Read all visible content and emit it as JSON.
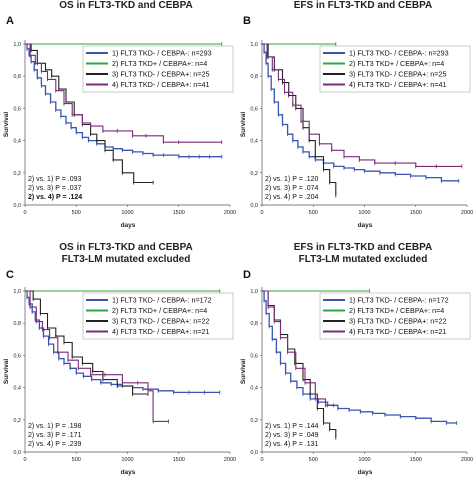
{
  "chart_data": [
    {
      "type": "line",
      "letter": "A",
      "title": "OS in FLT3-TKD and CEBPA",
      "subtitle": "",
      "xlabel": "days",
      "ylabel": "Survival",
      "xlim": [
        0,
        2000
      ],
      "ylim": [
        0,
        1.0
      ],
      "xticks": [
        "0",
        "500",
        "1000",
        "1500",
        "2000"
      ],
      "yticks": [
        "0,0",
        "0,2",
        "0,4",
        "0,6",
        "0,8",
        "1,0"
      ],
      "series": [
        {
          "name": "1) FLT3 TKD- / CEBPA-: n=293",
          "color": "#3a55b0",
          "x": [
            0,
            20,
            40,
            60,
            90,
            120,
            160,
            200,
            250,
            300,
            350,
            400,
            450,
            500,
            560,
            620,
            700,
            780,
            860,
            950,
            1050,
            1150,
            1250,
            1350,
            1500,
            1600,
            1700,
            1800,
            1920
          ],
          "y": [
            1.0,
            0.97,
            0.93,
            0.89,
            0.84,
            0.79,
            0.74,
            0.69,
            0.64,
            0.59,
            0.55,
            0.51,
            0.48,
            0.45,
            0.42,
            0.4,
            0.38,
            0.36,
            0.35,
            0.34,
            0.33,
            0.32,
            0.31,
            0.31,
            0.3,
            0.3,
            0.3,
            0.3,
            0.3
          ]
        },
        {
          "name": "2) FLT3 TKD+ / CEBPA+: n=4",
          "color": "#2ea640",
          "x": [
            0,
            1920
          ],
          "y": [
            1.0,
            1.0
          ]
        },
        {
          "name": "3) FLT3 TKD- / CEBPA+: n=25",
          "color": "#222222",
          "x": [
            0,
            60,
            120,
            200,
            260,
            330,
            400,
            480,
            560,
            640,
            700,
            780,
            860,
            950,
            1060,
            1250
          ],
          "y": [
            1.0,
            0.96,
            0.88,
            0.84,
            0.8,
            0.72,
            0.64,
            0.56,
            0.5,
            0.44,
            0.4,
            0.34,
            0.28,
            0.2,
            0.14,
            0.14
          ]
        },
        {
          "name": "4) FLT3 TKD- / CEBPA+: n=41",
          "color": "#7a2a7a",
          "x": [
            0,
            50,
            100,
            160,
            220,
            300,
            380,
            460,
            560,
            640,
            760,
            900,
            1050,
            1180,
            1350,
            1500,
            1920
          ],
          "y": [
            1.0,
            0.93,
            0.88,
            0.83,
            0.78,
            0.71,
            0.63,
            0.56,
            0.51,
            0.49,
            0.46,
            0.46,
            0.43,
            0.43,
            0.39,
            0.39,
            0.39
          ]
        }
      ],
      "pvalues": [
        "2) vs. 1) P = .093",
        "2) vs. 3) P = .037",
        "2) vs. 4) P = .124"
      ]
    },
    {
      "type": "line",
      "letter": "B",
      "title": "EFS in FLT3-TKD and CEBPA",
      "subtitle": "",
      "xlabel": "days",
      "ylabel": "Survival",
      "xlim": [
        0,
        2000
      ],
      "ylim": [
        0,
        1.0
      ],
      "xticks": [
        "0",
        "500",
        "1000",
        "1500",
        "2000"
      ],
      "yticks": [
        "0,0",
        "0,2",
        "0,4",
        "0,6",
        "0,8",
        "1,0"
      ],
      "series": [
        {
          "name": "1) FLT3 TKD- / CEBPA-: n=293",
          "color": "#3a55b0",
          "x": [
            0,
            20,
            40,
            60,
            90,
            120,
            160,
            200,
            250,
            300,
            350,
            400,
            460,
            520,
            600,
            700,
            800,
            900,
            1000,
            1150,
            1300,
            1450,
            1600,
            1750,
            1920
          ],
          "y": [
            1.0,
            0.95,
            0.88,
            0.8,
            0.72,
            0.64,
            0.56,
            0.5,
            0.44,
            0.4,
            0.36,
            0.33,
            0.3,
            0.28,
            0.26,
            0.24,
            0.23,
            0.22,
            0.21,
            0.2,
            0.19,
            0.18,
            0.17,
            0.15,
            0.15
          ]
        },
        {
          "name": "2) FLT3 TKD+ / CEBPA+: n=4",
          "color": "#2ea640",
          "x": [
            0,
            720
          ],
          "y": [
            1.0,
            1.0
          ]
        },
        {
          "name": "3) FLT3 TKD- / CEBPA+: n=25",
          "color": "#222222",
          "x": [
            0,
            60,
            120,
            200,
            260,
            330,
            400,
            460,
            520,
            600,
            660,
            720
          ],
          "y": [
            1.0,
            0.92,
            0.84,
            0.76,
            0.68,
            0.6,
            0.48,
            0.4,
            0.3,
            0.22,
            0.14,
            0.06
          ]
        },
        {
          "name": "4) FLT3 TKD- / CEBPA+: n=41",
          "color": "#7a2a7a",
          "x": [
            0,
            50,
            100,
            160,
            220,
            300,
            380,
            460,
            560,
            680,
            800,
            950,
            1100,
            1300,
            1500,
            1700,
            1950
          ],
          "y": [
            1.0,
            0.92,
            0.84,
            0.78,
            0.7,
            0.62,
            0.52,
            0.44,
            0.38,
            0.34,
            0.3,
            0.28,
            0.26,
            0.26,
            0.24,
            0.24,
            0.24
          ]
        }
      ],
      "pvalues": [
        "2) vs. 1) P = .120",
        "2) vs. 3) P = .074",
        "2) vs. 4) P = .204"
      ]
    },
    {
      "type": "line",
      "letter": "C",
      "title": "OS in FLT3-TKD and CEBPA",
      "subtitle": "FLT3-LM mutated excluded",
      "xlabel": "days",
      "ylabel": "Survival",
      "xlim": [
        0,
        2000
      ],
      "ylim": [
        0,
        1.0
      ],
      "xticks": [
        "0",
        "500",
        "1000",
        "1500",
        "2000"
      ],
      "yticks": [
        "0,0",
        "0,2",
        "0,4",
        "0,6",
        "0,8",
        "1,0"
      ],
      "series": [
        {
          "name": "1) FLT3 TKD- / CEBPA-: n=172",
          "color": "#3a55b0",
          "x": [
            0,
            20,
            40,
            70,
            100,
            140,
            180,
            230,
            280,
            330,
            380,
            440,
            500,
            570,
            650,
            740,
            840,
            950,
            1050,
            1150,
            1300,
            1450,
            1600,
            1750,
            1900
          ],
          "y": [
            1.0,
            0.96,
            0.92,
            0.87,
            0.82,
            0.77,
            0.72,
            0.67,
            0.62,
            0.58,
            0.55,
            0.52,
            0.49,
            0.47,
            0.45,
            0.43,
            0.42,
            0.41,
            0.4,
            0.39,
            0.38,
            0.37,
            0.37,
            0.37,
            0.37
          ]
        },
        {
          "name": "2) FLT3 TKD+ / CEBPA+: n=4",
          "color": "#2ea640",
          "x": [
            0,
            1900
          ],
          "y": [
            1.0,
            1.0
          ]
        },
        {
          "name": "3) FLT3 TKD- / CEBPA+: n=22",
          "color": "#222222",
          "x": [
            0,
            80,
            150,
            220,
            300,
            380,
            460,
            560,
            660,
            760,
            900,
            1050,
            1200
          ],
          "y": [
            1.0,
            0.95,
            0.86,
            0.77,
            0.72,
            0.68,
            0.59,
            0.55,
            0.5,
            0.45,
            0.41,
            0.36,
            0.36
          ]
        },
        {
          "name": "4) FLT3 TKD- / CEBPA+: n=21",
          "color": "#7a2a7a",
          "x": [
            0,
            50,
            110,
            170,
            240,
            320,
            420,
            520,
            640,
            780,
            950,
            1100,
            1200,
            1250,
            1400
          ],
          "y": [
            1.0,
            0.9,
            0.81,
            0.76,
            0.71,
            0.62,
            0.57,
            0.52,
            0.48,
            0.48,
            0.43,
            0.43,
            0.38,
            0.19,
            0.19
          ]
        }
      ],
      "pvalues": [
        "2) vs. 1) P = .198",
        "2) vs. 3) P = .171",
        "2) vs. 4) P = .239"
      ]
    },
    {
      "type": "line",
      "letter": "D",
      "title": "EFS in FLT3-TKD and CEBPA",
      "subtitle": "FLT3-LM mutated excluded",
      "xlabel": "days",
      "ylabel": "Survival",
      "xlim": [
        0,
        2000
      ],
      "ylim": [
        0,
        1.0
      ],
      "xticks": [
        "0",
        "500",
        "1000",
        "1500",
        "2000"
      ],
      "yticks": [
        "0,0",
        "0,2",
        "0,4",
        "0,6",
        "0,8",
        "1,0"
      ],
      "series": [
        {
          "name": "1) FLT3 TKD- / CEBPA-: n=172",
          "color": "#3a55b0",
          "x": [
            0,
            20,
            40,
            70,
            100,
            140,
            180,
            230,
            280,
            340,
            400,
            470,
            550,
            640,
            740,
            850,
            960,
            1080,
            1200,
            1350,
            1500,
            1650,
            1800,
            1900
          ],
          "y": [
            1.0,
            0.94,
            0.86,
            0.78,
            0.7,
            0.62,
            0.55,
            0.49,
            0.44,
            0.4,
            0.36,
            0.33,
            0.31,
            0.29,
            0.27,
            0.26,
            0.25,
            0.24,
            0.23,
            0.22,
            0.21,
            0.19,
            0.18,
            0.18
          ]
        },
        {
          "name": "2) FLT3 TKD+ / CEBPA+: n=4",
          "color": "#2ea640",
          "x": [
            0,
            1050
          ],
          "y": [
            1.0,
            1.0
          ]
        },
        {
          "name": "3) FLT3 TKD- / CEBPA+: n=22",
          "color": "#222222",
          "x": [
            0,
            60,
            120,
            180,
            250,
            320,
            400,
            470,
            540,
            600,
            660,
            720
          ],
          "y": [
            1.0,
            0.91,
            0.82,
            0.73,
            0.64,
            0.55,
            0.45,
            0.36,
            0.27,
            0.18,
            0.14,
            0.09
          ]
        },
        {
          "name": "4) FLT3 TKD- / CEBPA+: n=21",
          "color": "#7a2a7a",
          "x": [
            0,
            60,
            120,
            180,
            250,
            330,
            420,
            520,
            620,
            700
          ],
          "y": [
            1.0,
            0.9,
            0.81,
            0.71,
            0.62,
            0.52,
            0.43,
            0.33,
            0.29,
            0.29
          ]
        }
      ],
      "pvalues": [
        "2) vs. 1) P = .144",
        "2) vs. 3) P = .049",
        "2) vs. 4) P = .131"
      ]
    }
  ]
}
